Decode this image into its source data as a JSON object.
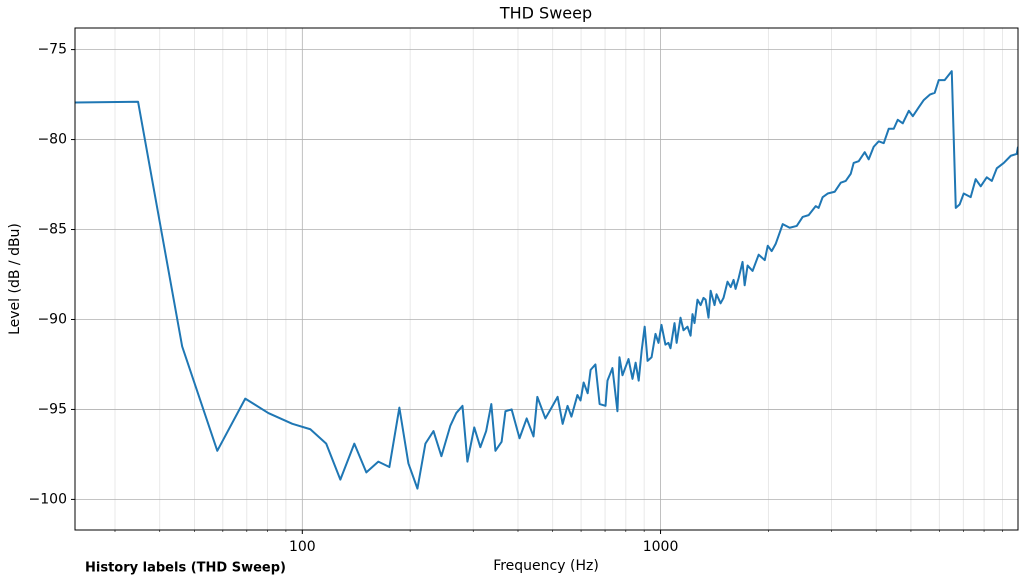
{
  "chart_data": {
    "type": "line",
    "title": "THD Sweep",
    "x_label": "Frequency (Hz)",
    "y_label": "Level (dB / dBu)",
    "annotation": "History labels (THD Sweep)",
    "x_scale": "log",
    "grid": true,
    "xlim": [
      23.2,
      9950
    ],
    "ylim": [
      -101.7,
      -73.8
    ],
    "xticks": [
      100,
      1000
    ],
    "xticks_minor": [
      30,
      40,
      50,
      60,
      70,
      80,
      90,
      200,
      300,
      400,
      500,
      600,
      700,
      800,
      900,
      2000,
      3000,
      4000,
      5000,
      6000,
      7000,
      8000,
      9000
    ],
    "yticks": [
      {
        "value": -100,
        "label": "−100"
      },
      {
        "value": -95,
        "label": "−95"
      },
      {
        "value": -90,
        "label": "−90"
      },
      {
        "value": -85,
        "label": "−85"
      },
      {
        "value": -80,
        "label": "−80"
      },
      {
        "value": -75,
        "label": "−75"
      }
    ],
    "x": [
      23.2,
      34.8,
      46.2,
      57.9,
      69.3,
      80.4,
      93.8,
      105.3,
      116.6,
      127.7,
      139.7,
      150.9,
      163,
      175,
      186.6,
      197.8,
      209.6,
      220.6,
      232.4,
      244.5,
      259,
      269,
      280,
      289,
      302,
      314,
      326,
      337,
      346,
      360,
      369,
      384,
      404,
      423,
      442,
      453,
      477,
      493,
      516,
      533,
      550,
      564,
      586,
      598,
      610,
      626,
      638,
      658,
      676,
      702,
      711,
      734,
      758,
      768,
      783,
      814,
      835,
      852,
      869,
      886,
      903,
      920,
      944,
      968,
      987,
      1006,
      1032,
      1052,
      1066,
      1094,
      1109,
      1137,
      1159,
      1189,
      1213,
      1228,
      1244,
      1268,
      1294,
      1318,
      1336,
      1361,
      1380,
      1415,
      1433,
      1471,
      1499,
      1538,
      1570,
      1599,
      1620,
      1652,
      1694,
      1717,
      1750,
      1807,
      1879,
      1954,
      1992,
      2043,
      2096,
      2193,
      2293,
      2400,
      2493,
      2591,
      2711,
      2762,
      2835,
      2928,
      3064,
      3185,
      3288,
      3396,
      3460,
      3574,
      3715,
      3811,
      3936,
      4065,
      4198,
      4335,
      4477,
      4594,
      4744,
      4932,
      5061,
      5260,
      5432,
      5647,
      5825,
      5978,
      6210,
      6500,
      6670,
      6840,
      7020,
      7340,
      7580,
      7830,
      8140,
      8410,
      8680,
      9080,
      9500,
      9870,
      9950
    ],
    "series": [
      {
        "name": "THD Sweep",
        "color": "#1f77b4",
        "values": [
          -77.94,
          -77.9,
          -91.5,
          -97.3,
          -94.4,
          -95.2,
          -95.8,
          -96.1,
          -96.9,
          -98.9,
          -96.9,
          -98.5,
          -97.9,
          -98.2,
          -94.9,
          -98.0,
          -99.4,
          -96.9,
          -96.2,
          -97.6,
          -95.9,
          -95.2,
          -94.8,
          -97.9,
          -96.0,
          -97.1,
          -96.2,
          -94.7,
          -97.3,
          -96.8,
          -95.1,
          -95.0,
          -96.6,
          -95.5,
          -96.5,
          -94.3,
          -95.5,
          -95.0,
          -94.3,
          -95.8,
          -94.8,
          -95.4,
          -94.2,
          -94.5,
          -93.5,
          -94.1,
          -92.8,
          -92.5,
          -94.7,
          -94.8,
          -93.4,
          -92.7,
          -95.1,
          -92.1,
          -93.1,
          -92.2,
          -93.3,
          -92.4,
          -93.4,
          -91.7,
          -90.4,
          -92.3,
          -92.1,
          -90.8,
          -91.3,
          -90.3,
          -91.4,
          -91.3,
          -91.6,
          -90.2,
          -91.3,
          -89.9,
          -90.6,
          -90.4,
          -90.9,
          -89.7,
          -90.2,
          -88.9,
          -89.2,
          -88.8,
          -88.9,
          -89.9,
          -88.4,
          -89.2,
          -88.6,
          -89.1,
          -88.8,
          -87.9,
          -88.2,
          -87.8,
          -88.3,
          -87.7,
          -86.8,
          -88.1,
          -87.0,
          -87.3,
          -86.4,
          -86.7,
          -85.9,
          -86.2,
          -85.8,
          -84.7,
          -84.9,
          -84.8,
          -84.3,
          -84.2,
          -83.7,
          -83.8,
          -83.2,
          -83.0,
          -82.9,
          -82.4,
          -82.3,
          -81.9,
          -81.3,
          -81.2,
          -80.7,
          -81.1,
          -80.4,
          -80.1,
          -80.2,
          -79.4,
          -79.4,
          -78.9,
          -79.1,
          -78.4,
          -78.7,
          -78.2,
          -77.8,
          -77.5,
          -77.4,
          -76.7,
          -76.7,
          -76.2,
          -83.8,
          -83.6,
          -83.0,
          -83.2,
          -82.2,
          -82.6,
          -82.1,
          -82.3,
          -81.6,
          -81.3,
          -80.9,
          -80.8,
          -80.4
        ]
      }
    ]
  }
}
